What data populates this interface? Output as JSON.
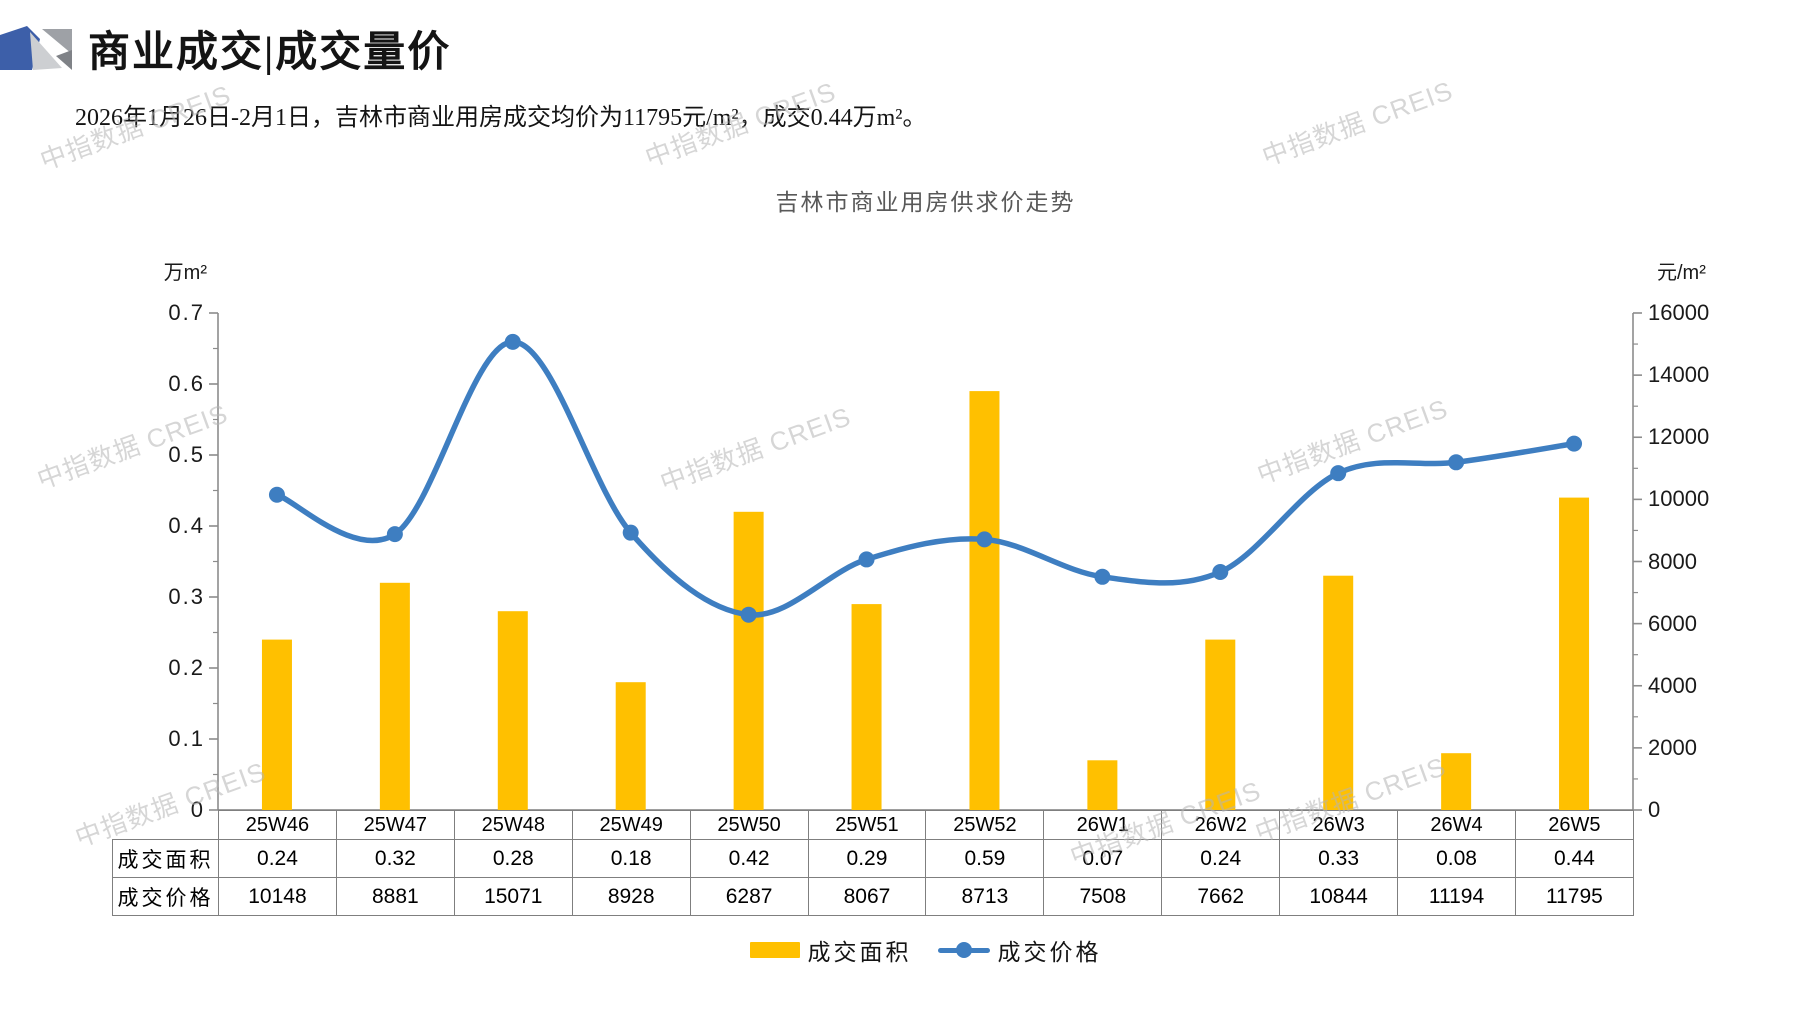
{
  "page": {
    "title": "商业成交|成交量价",
    "subtitle": "2026年1月26日-2月1日，吉林市商业用房成交均价为11795元/m²，成交0.44万m²。",
    "watermark_text": "中指数据 CREIS"
  },
  "chart_data": {
    "type": "bar",
    "combo": "bar+line",
    "title": "吉林市商业用房供求价走势",
    "categories": [
      "25W46",
      "25W47",
      "25W48",
      "25W49",
      "25W50",
      "25W51",
      "25W52",
      "26W1",
      "26W2",
      "26W3",
      "26W4",
      "26W5"
    ],
    "series": [
      {
        "name": "成交面积",
        "type": "bar",
        "axis": "left",
        "unit": "万m²",
        "color": "#FFC000",
        "values": [
          0.24,
          0.32,
          0.28,
          0.18,
          0.42,
          0.29,
          0.59,
          0.07,
          0.24,
          0.33,
          0.08,
          0.44
        ]
      },
      {
        "name": "成交价格",
        "type": "line",
        "axis": "right",
        "unit": "元/m²",
        "color": "#3E7EC1",
        "values": [
          10148,
          8881,
          15071,
          8928,
          6287,
          8067,
          8713,
          7508,
          7662,
          10844,
          11194,
          11795
        ]
      }
    ],
    "left_axis": {
      "label": "万m²",
      "min": 0,
      "max": 0.7,
      "step": 0.1,
      "ticks": [
        "0.7",
        "0.6",
        "0.5",
        "0.4",
        "0.3",
        "0.2",
        "0.1",
        "0"
      ]
    },
    "right_axis": {
      "label": "元/m²",
      "min": 0,
      "max": 16000,
      "step": 2000,
      "ticks": [
        "16000",
        "14000",
        "12000",
        "10000",
        "8000",
        "6000",
        "4000",
        "2000",
        "0"
      ]
    },
    "grid": false,
    "legend_position": "bottom",
    "legend": [
      "成交面积",
      "成交价格"
    ]
  },
  "table": {
    "row_headers": [
      "成交面积",
      "成交价格"
    ],
    "columns": [
      "25W46",
      "25W47",
      "25W48",
      "25W49",
      "25W50",
      "25W51",
      "25W52",
      "26W1",
      "26W2",
      "26W3",
      "26W4",
      "26W5"
    ],
    "rows": [
      [
        "0.24",
        "0.32",
        "0.28",
        "0.18",
        "0.42",
        "0.29",
        "0.59",
        "0.07",
        "0.24",
        "0.33",
        "0.08",
        "0.44"
      ],
      [
        "10148",
        "8881",
        "15071",
        "8928",
        "6287",
        "8067",
        "8713",
        "7508",
        "7662",
        "10844",
        "11194",
        "11795"
      ]
    ]
  }
}
